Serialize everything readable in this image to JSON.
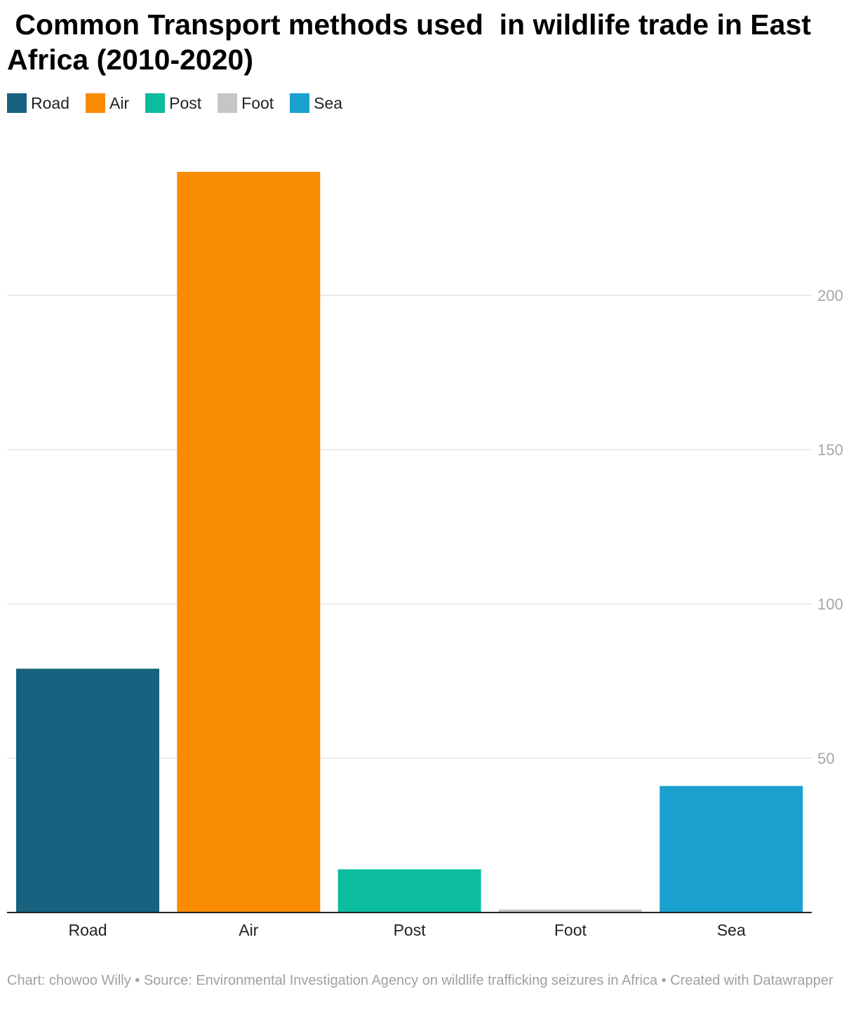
{
  "chart_data": {
    "type": "bar",
    "title": " Common Transport methods used  in wildlife trade in East Africa (2010-2020)",
    "categories": [
      "Road",
      "Air",
      "Post",
      "Foot",
      "Sea"
    ],
    "values": [
      79,
      240,
      14,
      1,
      41
    ],
    "colors": [
      "#17627e",
      "#f98b00",
      "#0cbc9f",
      "#c6c6c6",
      "#1ba1cf"
    ],
    "legend": [
      {
        "label": "Road",
        "color": "#17627e"
      },
      {
        "label": "Air",
        "color": "#f98b00"
      },
      {
        "label": "Post",
        "color": "#0cbc9f"
      },
      {
        "label": "Foot",
        "color": "#c6c6c6"
      },
      {
        "label": "Sea",
        "color": "#1ba1cf"
      }
    ],
    "legend_position": "top-left",
    "y_axis_position": "right",
    "yticks": [
      50,
      100,
      150,
      200
    ],
    "ylim": [
      0,
      250
    ],
    "grid": true,
    "xlabel": "",
    "ylabel": ""
  },
  "footer": {
    "text": "Chart: chowoo Willy  • Source: Environmental Investigation Agency on wildlife trafficking seizures in Africa • Created with Datawrapper"
  }
}
